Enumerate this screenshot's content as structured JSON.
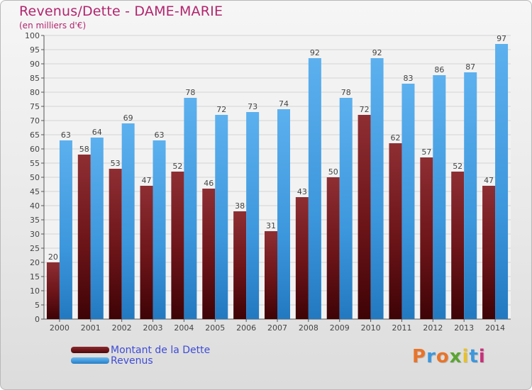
{
  "header": {
    "title": "Revenus/Dette - DAME-MARIE",
    "subtitle": "(en milliers d'€)"
  },
  "legend": {
    "items": [
      {
        "label": "Montant de la Dette",
        "color": "#6b1418"
      },
      {
        "label": "Revenus",
        "color": "#3d97dc"
      }
    ]
  },
  "logo": {
    "text": "Proxiti",
    "colors": [
      "#e8742a",
      "#3d97dc",
      "#e8742a",
      "#5aa532",
      "#e8c02a",
      "#3d97dc",
      "#c8307a"
    ]
  },
  "chart_data": {
    "type": "bar",
    "title": "Revenus/Dette - DAME-MARIE",
    "subtitle": "(en milliers d'€)",
    "categories": [
      "2000",
      "2001",
      "2002",
      "2003",
      "2004",
      "2005",
      "2006",
      "2007",
      "2008",
      "2009",
      "2010",
      "2011",
      "2012",
      "2013",
      "2014"
    ],
    "series": [
      {
        "name": "Montant de la Dette",
        "color": "#6b1418",
        "values": [
          20,
          58,
          53,
          47,
          52,
          46,
          38,
          31,
          43,
          50,
          72,
          62,
          57,
          52,
          47
        ]
      },
      {
        "name": "Revenus",
        "color": "#3d97dc",
        "values": [
          63,
          64,
          69,
          63,
          78,
          72,
          73,
          74,
          92,
          78,
          92,
          83,
          86,
          87,
          97
        ]
      }
    ],
    "ylim": [
      0,
      100
    ],
    "ytick_step": 5,
    "grid": true,
    "legend_position": "bottom-left"
  }
}
